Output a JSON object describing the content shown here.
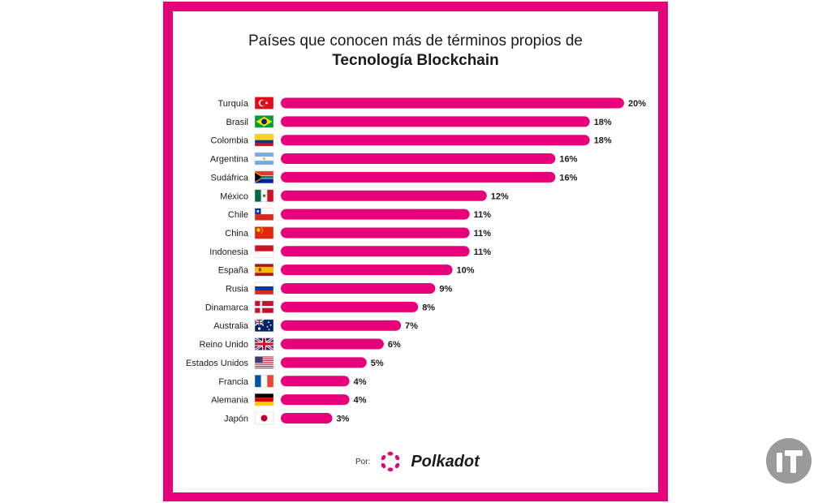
{
  "chart_data": {
    "type": "bar",
    "orientation": "horizontal",
    "title_line1": "Países que conocen más de términos propios de",
    "title_line2": "Tecnología Blockchain",
    "categories": [
      "Turquía",
      "Brasil",
      "Colombia",
      "Argentina",
      "Sudáfrica",
      "México",
      "Chile",
      "China",
      "Indonesia",
      "España",
      "Rusia",
      "Dinamarca",
      "Australia",
      "Reino Unido",
      "Estados Unidos",
      "Francia",
      "Alemania",
      "Japón"
    ],
    "values": [
      20,
      18,
      18,
      16,
      16,
      12,
      11,
      11,
      11,
      10,
      9,
      8,
      7,
      6,
      5,
      4,
      4,
      3
    ],
    "value_labels": [
      "20%",
      "18%",
      "18%",
      "16%",
      "16%",
      "12%",
      "11%",
      "11%",
      "11%",
      "10%",
      "9%",
      "8%",
      "7%",
      "6%",
      "5%",
      "4%",
      "4%",
      "3%"
    ],
    "flags": [
      "turkey",
      "brazil",
      "colombia",
      "argentina",
      "south-africa",
      "mexico",
      "chile",
      "china",
      "indonesia",
      "spain",
      "russia",
      "denmark",
      "australia",
      "united-kingdom",
      "united-states",
      "france",
      "germany",
      "japan"
    ],
    "bar_color": "#e6007a",
    "xlim": [
      0,
      20
    ],
    "grid": false,
    "legend": "none"
  },
  "footer": {
    "by_label": "Por:",
    "brand": "Polkadot"
  },
  "colors": {
    "frame": "#e6007a",
    "brand": "#e6007a",
    "watermark": "#9a9a9a"
  }
}
